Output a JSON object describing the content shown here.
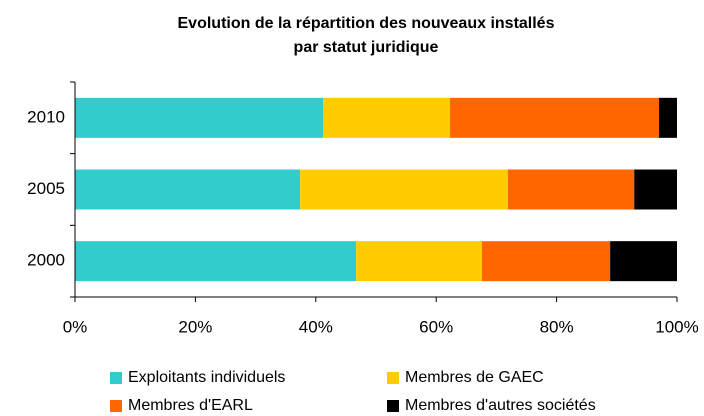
{
  "chart_data": {
    "type": "stacked_barh",
    "title": [
      "Evolution de la répartition des nouveaux installés",
      "par statut juridique"
    ],
    "categories": [
      "2010",
      "2005",
      "2000"
    ],
    "series": [
      {
        "name": "Exploitants individuels",
        "color": "#33CCCC",
        "values": [
          41.2,
          37.4,
          46.7
        ]
      },
      {
        "name": "Membres de GAEC",
        "color": "#FFCC00",
        "values": [
          21.1,
          34.5,
          20.9
        ]
      },
      {
        "name": "Membres d'EARL",
        "color": "#FF6600",
        "values": [
          34.7,
          21.0,
          21.3
        ]
      },
      {
        "name": "Membres d'autres sociétés",
        "color": "#000000",
        "values": [
          3.0,
          7.1,
          11.1
        ]
      }
    ],
    "xlim": [
      0,
      100
    ],
    "xticks": [
      {
        "value": 0,
        "label": "0%"
      },
      {
        "value": 20,
        "label": "20%"
      },
      {
        "value": 40,
        "label": "40%"
      },
      {
        "value": 60,
        "label": "60%"
      },
      {
        "value": 80,
        "label": "80%"
      },
      {
        "value": 100,
        "label": "100%"
      }
    ],
    "grid": false
  }
}
